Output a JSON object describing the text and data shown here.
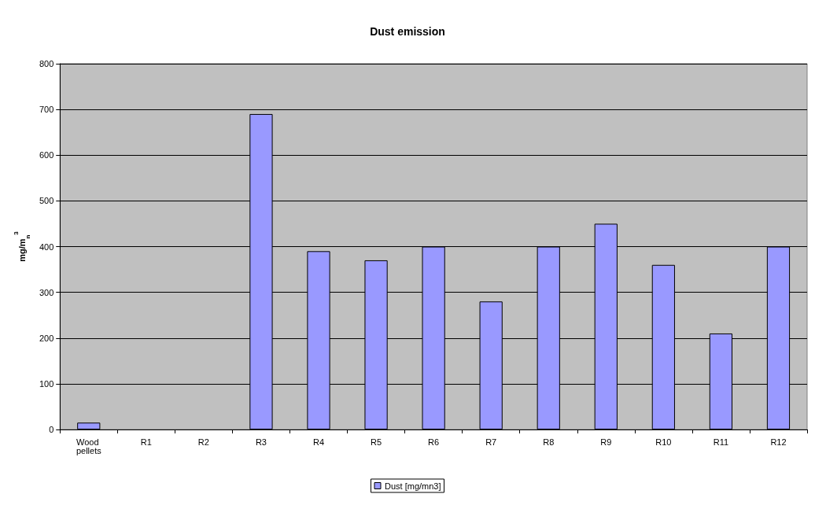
{
  "chart_data": {
    "type": "bar",
    "title": "Dust emission",
    "ylabel": "mg/m$_{n}$$^{3}$",
    "categories": [
      "Wood pellets",
      "R1",
      "R2",
      "R3",
      "R4",
      "R5",
      "R6",
      "R7",
      "R8",
      "R9",
      "R10",
      "R11",
      "R12"
    ],
    "series": [
      {
        "name": "Dust [mg/mn3]",
        "color": "#9999ff",
        "values": [
          15,
          null,
          null,
          690,
          390,
          370,
          400,
          280,
          400,
          450,
          360,
          210,
          400
        ]
      }
    ],
    "ylim": [
      0,
      800
    ],
    "yticks": [
      0,
      100,
      200,
      300,
      400,
      500,
      600,
      700,
      800
    ],
    "grid": "y",
    "legend": "bottom"
  }
}
